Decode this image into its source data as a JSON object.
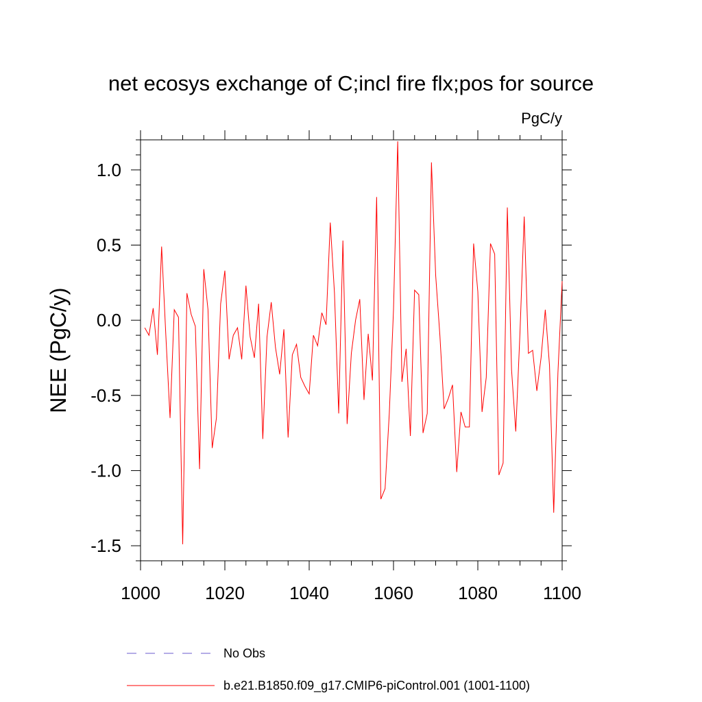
{
  "chart_data": {
    "type": "line",
    "title": "net ecosys exchange of C;incl fire flx;pos for source",
    "units_label": "PgC/y",
    "ylabel": "NEE  (PgC/y)",
    "xlabel": "",
    "xlim": [
      1000,
      1100
    ],
    "ylim": [
      -1.6,
      1.2
    ],
    "x_ticks": [
      "1000",
      "1020",
      "1040",
      "1060",
      "1080",
      "1100"
    ],
    "y_ticks": [
      "1.0",
      "0.5",
      "0.0",
      "-0.5",
      "-1.0",
      "-1.5"
    ],
    "grid": false,
    "legend_position": "bottom",
    "series": [
      {
        "name": "No Obs",
        "color": "#6a5acd",
        "dash": "dashed",
        "x": [],
        "values": []
      },
      {
        "name": "b.e21.B1850.f09_g17.CMIP6-piControl.001 (1001-1100)",
        "color": "#ff0000",
        "dash": "solid",
        "x": [
          1001,
          1002,
          1003,
          1004,
          1005,
          1006,
          1007,
          1008,
          1009,
          1010,
          1011,
          1012,
          1013,
          1014,
          1015,
          1016,
          1017,
          1018,
          1019,
          1020,
          1021,
          1022,
          1023,
          1024,
          1025,
          1026,
          1027,
          1028,
          1029,
          1030,
          1031,
          1032,
          1033,
          1034,
          1035,
          1036,
          1037,
          1038,
          1039,
          1040,
          1041,
          1042,
          1043,
          1044,
          1045,
          1046,
          1047,
          1048,
          1049,
          1050,
          1051,
          1052,
          1053,
          1054,
          1055,
          1056,
          1057,
          1058,
          1059,
          1060,
          1061,
          1062,
          1063,
          1064,
          1065,
          1066,
          1067,
          1068,
          1069,
          1070,
          1071,
          1072,
          1073,
          1074,
          1075,
          1076,
          1077,
          1078,
          1079,
          1080,
          1081,
          1082,
          1083,
          1084,
          1085,
          1086,
          1087,
          1088,
          1089,
          1090,
          1091,
          1092,
          1093,
          1094,
          1095,
          1096,
          1097,
          1098,
          1099,
          1100
        ],
        "values": [
          -0.05,
          -0.1,
          0.08,
          -0.23,
          0.49,
          -0.1,
          -0.65,
          0.07,
          0.02,
          -1.49,
          0.18,
          0.04,
          -0.04,
          -0.99,
          0.34,
          0.07,
          -0.85,
          -0.65,
          0.11,
          0.33,
          -0.26,
          -0.1,
          -0.05,
          -0.26,
          0.23,
          -0.11,
          -0.25,
          0.11,
          -0.79,
          -0.11,
          0.12,
          -0.18,
          -0.36,
          -0.06,
          -0.78,
          -0.23,
          -0.16,
          -0.38,
          -0.44,
          -0.49,
          -0.1,
          -0.17,
          0.05,
          -0.03,
          0.65,
          0.18,
          -0.62,
          0.53,
          -0.69,
          -0.22,
          0.0,
          0.14,
          -0.53,
          -0.09,
          -0.4,
          0.82,
          -1.19,
          -1.12,
          -0.62,
          0.07,
          1.19,
          -0.41,
          -0.19,
          -0.77,
          0.2,
          0.17,
          -0.75,
          -0.62,
          1.05,
          0.3,
          -0.1,
          -0.59,
          -0.52,
          -0.43,
          -1.01,
          -0.61,
          -0.71,
          -0.71,
          0.51,
          0.19,
          -0.61,
          -0.38,
          0.51,
          0.44,
          -1.03,
          -0.95,
          0.75,
          -0.33,
          -0.74,
          -0.08,
          0.69,
          -0.22,
          -0.2,
          -0.47,
          -0.25,
          0.07,
          -0.3,
          -1.28,
          -0.35,
          0.26
        ]
      }
    ]
  }
}
